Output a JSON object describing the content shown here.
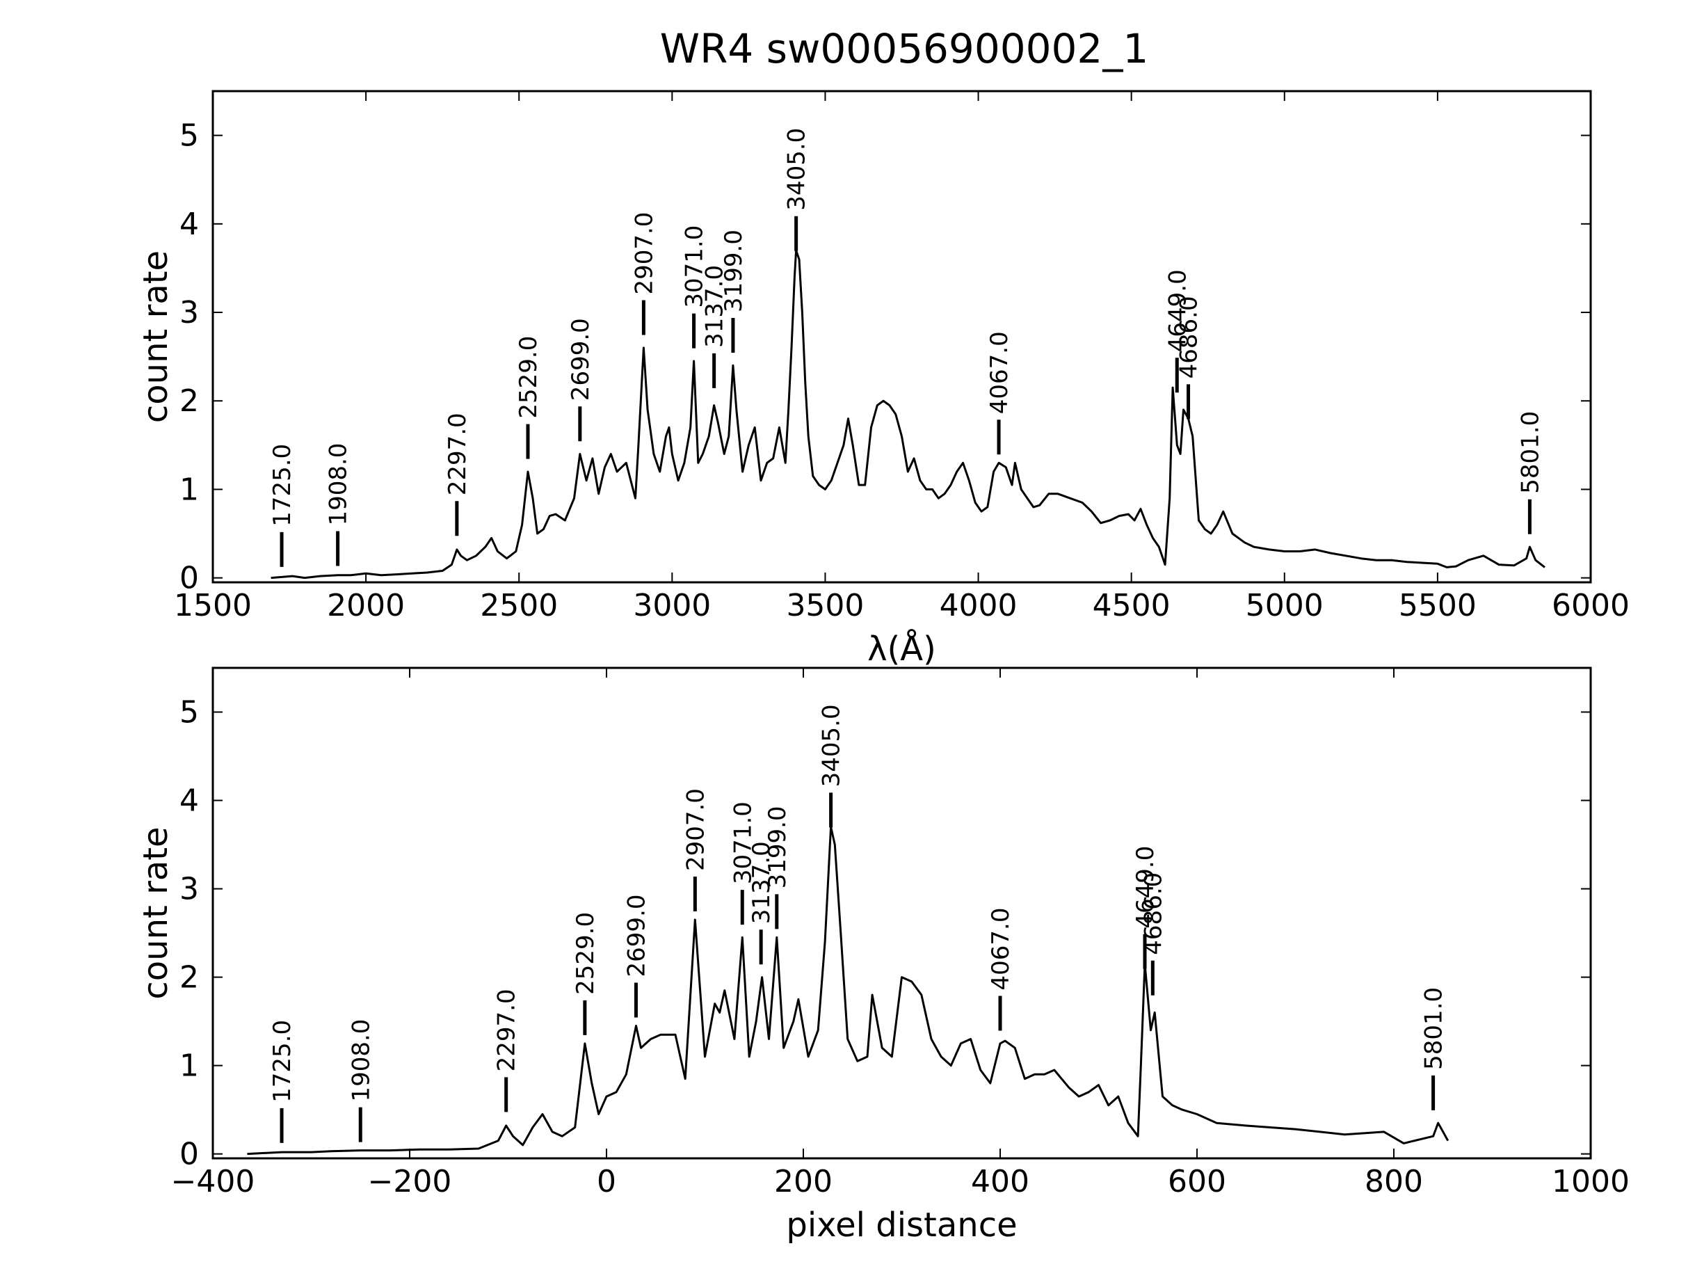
{
  "title": "WR4  sw00056900002_1",
  "chart_data": [
    {
      "type": "line",
      "xlabel": "λ(Å)",
      "ylabel": "count rate",
      "xlim": [
        1500,
        6000
      ],
      "ylim": [
        -0.05,
        5.5
      ],
      "xticks": [
        1500,
        2000,
        2500,
        3000,
        3500,
        4000,
        4500,
        5000,
        5500,
        6000
      ],
      "xtick_labels": [
        "1500",
        "2000",
        "2500",
        "3000",
        "3500",
        "4000",
        "4500",
        "5000",
        "5500",
        "6000"
      ],
      "yticks": [
        0,
        1,
        2,
        3,
        4,
        5
      ],
      "ytick_labels": [
        "0",
        "1",
        "2",
        "3",
        "4",
        "5"
      ],
      "grid": false,
      "series": [
        {
          "x": [
            1690,
            1725,
            1760,
            1800,
            1850,
            1908,
            1950,
            2000,
            2050,
            2100,
            2150,
            2200,
            2250,
            2280,
            2297,
            2310,
            2330,
            2360,
            2390,
            2410,
            2430,
            2460,
            2490,
            2510,
            2529,
            2545,
            2560,
            2580,
            2600,
            2620,
            2650,
            2680,
            2699,
            2720,
            2740,
            2760,
            2780,
            2800,
            2820,
            2850,
            2880,
            2890,
            2907,
            2920,
            2940,
            2960,
            2980,
            2990,
            3000,
            3020,
            3040,
            3060,
            3071,
            3085,
            3100,
            3120,
            3137,
            3150,
            3170,
            3185,
            3199,
            3210,
            3230,
            3250,
            3270,
            3290,
            3310,
            3330,
            3350,
            3360,
            3370,
            3380,
            3390,
            3400,
            3405,
            3415,
            3425,
            3435,
            3445,
            3460,
            3480,
            3500,
            3520,
            3540,
            3560,
            3575,
            3590,
            3610,
            3630,
            3650,
            3670,
            3690,
            3710,
            3730,
            3750,
            3770,
            3790,
            3810,
            3830,
            3850,
            3870,
            3890,
            3910,
            3930,
            3950,
            3970,
            3990,
            4010,
            4030,
            4050,
            4067,
            4090,
            4110,
            4120,
            4140,
            4160,
            4180,
            4200,
            4230,
            4260,
            4300,
            4340,
            4370,
            4400,
            4430,
            4460,
            4490,
            4510,
            4530,
            4550,
            4570,
            4590,
            4610,
            4625,
            4635,
            4649,
            4660,
            4670,
            4686,
            4700,
            4720,
            4740,
            4760,
            4780,
            4800,
            4830,
            4870,
            4900,
            4950,
            5000,
            5050,
            5100,
            5150,
            5200,
            5250,
            5300,
            5350,
            5400,
            5450,
            5500,
            5530,
            5560,
            5600,
            5650,
            5700,
            5750,
            5790,
            5801,
            5820,
            5850
          ],
          "y": [
            0.0,
            0.01,
            0.02,
            0.0,
            0.02,
            0.03,
            0.03,
            0.05,
            0.03,
            0.04,
            0.05,
            0.06,
            0.08,
            0.15,
            0.32,
            0.25,
            0.2,
            0.25,
            0.35,
            0.45,
            0.3,
            0.22,
            0.3,
            0.6,
            1.2,
            0.9,
            0.5,
            0.55,
            0.7,
            0.72,
            0.65,
            0.9,
            1.4,
            1.1,
            1.35,
            0.95,
            1.25,
            1.4,
            1.2,
            1.3,
            0.9,
            1.5,
            2.6,
            1.9,
            1.4,
            1.2,
            1.6,
            1.7,
            1.4,
            1.1,
            1.3,
            1.7,
            2.45,
            1.3,
            1.4,
            1.6,
            1.95,
            1.75,
            1.4,
            1.6,
            2.4,
            1.9,
            1.2,
            1.5,
            1.7,
            1.1,
            1.3,
            1.35,
            1.7,
            1.5,
            1.3,
            1.9,
            2.6,
            3.4,
            3.7,
            3.6,
            3.0,
            2.2,
            1.6,
            1.15,
            1.05,
            1.0,
            1.1,
            1.3,
            1.5,
            1.8,
            1.5,
            1.05,
            1.05,
            1.7,
            1.95,
            2.0,
            1.95,
            1.85,
            1.6,
            1.2,
            1.35,
            1.1,
            1.0,
            1.0,
            0.9,
            0.95,
            1.05,
            1.2,
            1.3,
            1.1,
            0.85,
            0.75,
            0.8,
            1.2,
            1.3,
            1.25,
            1.05,
            1.3,
            1.0,
            0.9,
            0.8,
            0.82,
            0.95,
            0.95,
            0.9,
            0.85,
            0.75,
            0.62,
            0.65,
            0.7,
            0.72,
            0.65,
            0.78,
            0.6,
            0.45,
            0.35,
            0.15,
            0.9,
            2.15,
            1.5,
            1.4,
            1.9,
            1.8,
            1.6,
            0.65,
            0.55,
            0.5,
            0.6,
            0.75,
            0.5,
            0.4,
            0.35,
            0.32,
            0.3,
            0.3,
            0.32,
            0.28,
            0.25,
            0.22,
            0.2,
            0.2,
            0.18,
            0.17,
            0.16,
            0.12,
            0.13,
            0.2,
            0.25,
            0.15,
            0.14,
            0.22,
            0.35,
            0.2,
            0.12
          ]
        }
      ],
      "line_markers": [
        {
          "x": 1725,
          "y": 0.03,
          "label": "1725.0"
        },
        {
          "x": 1908,
          "y": 0.04,
          "label": "1908.0"
        },
        {
          "x": 2297,
          "y": 0.38,
          "label": "2297.0"
        },
        {
          "x": 2529,
          "y": 1.25,
          "label": "2529.0"
        },
        {
          "x": 2699,
          "y": 1.45,
          "label": "2699.0"
        },
        {
          "x": 2907,
          "y": 2.65,
          "label": "2907.0"
        },
        {
          "x": 3071,
          "y": 2.5,
          "label": "3071.0"
        },
        {
          "x": 3137,
          "y": 2.05,
          "label": "3137.0"
        },
        {
          "x": 3199,
          "y": 2.45,
          "label": "3199.0"
        },
        {
          "x": 3405,
          "y": 3.6,
          "label": "3405.0"
        },
        {
          "x": 4067,
          "y": 1.3,
          "label": "4067.0"
        },
        {
          "x": 4649,
          "y": 2.0,
          "label": "4649.0"
        },
        {
          "x": 4686,
          "y": 1.7,
          "label": "4686.0"
        },
        {
          "x": 5801,
          "y": 0.4,
          "label": "5801.0"
        }
      ]
    },
    {
      "type": "line",
      "xlabel": "pixel distance",
      "ylabel": "count rate",
      "xlim": [
        -400,
        1000
      ],
      "ylim": [
        -0.05,
        5.5
      ],
      "xticks": [
        -400,
        -200,
        0,
        200,
        400,
        600,
        800,
        1000
      ],
      "xtick_labels": [
        "−400",
        "−200",
        "0",
        "200",
        "400",
        "600",
        "800",
        "1000"
      ],
      "yticks": [
        0,
        1,
        2,
        3,
        4,
        5
      ],
      "ytick_labels": [
        "0",
        "1",
        "2",
        "3",
        "4",
        "5"
      ],
      "grid": false,
      "series": [
        {
          "x": [
            -365,
            -330,
            -300,
            -280,
            -250,
            -220,
            -190,
            -160,
            -130,
            -110,
            -102,
            -95,
            -85,
            -75,
            -65,
            -55,
            -45,
            -32,
            -22,
            -15,
            -8,
            0,
            10,
            20,
            30,
            35,
            45,
            55,
            70,
            80,
            90,
            100,
            110,
            115,
            120,
            130,
            138,
            145,
            152,
            158,
            165,
            173,
            180,
            190,
            195,
            205,
            215,
            222,
            228,
            232,
            238,
            245,
            255,
            265,
            270,
            280,
            290,
            300,
            310,
            320,
            330,
            340,
            350,
            360,
            370,
            380,
            390,
            400,
            405,
            415,
            425,
            435,
            445,
            455,
            470,
            480,
            490,
            500,
            510,
            520,
            530,
            540,
            543,
            547,
            553,
            557,
            565,
            575,
            585,
            600,
            620,
            650,
            700,
            750,
            790,
            810,
            840,
            845,
            855
          ],
          "y": [
            0.0,
            0.02,
            0.02,
            0.03,
            0.04,
            0.04,
            0.05,
            0.05,
            0.06,
            0.15,
            0.32,
            0.2,
            0.1,
            0.3,
            0.45,
            0.25,
            0.2,
            0.3,
            1.25,
            0.8,
            0.45,
            0.65,
            0.7,
            0.9,
            1.45,
            1.2,
            1.3,
            1.35,
            1.35,
            0.85,
            2.65,
            1.1,
            1.7,
            1.6,
            1.85,
            1.3,
            2.45,
            1.1,
            1.5,
            2.0,
            1.3,
            2.45,
            1.2,
            1.5,
            1.75,
            1.1,
            1.4,
            2.4,
            3.7,
            3.5,
            2.5,
            1.3,
            1.05,
            1.1,
            1.8,
            1.2,
            1.1,
            2.0,
            1.95,
            1.8,
            1.3,
            1.1,
            1.0,
            1.25,
            1.3,
            0.95,
            0.8,
            1.25,
            1.28,
            1.2,
            0.85,
            0.9,
            0.9,
            0.95,
            0.75,
            0.65,
            0.7,
            0.78,
            0.55,
            0.65,
            0.35,
            0.2,
            1.0,
            2.15,
            1.4,
            1.6,
            0.65,
            0.55,
            0.5,
            0.45,
            0.35,
            0.32,
            0.28,
            0.22,
            0.25,
            0.12,
            0.2,
            0.35,
            0.15
          ]
        }
      ],
      "line_markers": [
        {
          "x": -330,
          "y": 0.03,
          "label": "1725.0"
        },
        {
          "x": -250,
          "y": 0.04,
          "label": "1908.0"
        },
        {
          "x": -102,
          "y": 0.38,
          "label": "2297.0"
        },
        {
          "x": -22,
          "y": 1.25,
          "label": "2529.0"
        },
        {
          "x": 30,
          "y": 1.45,
          "label": "2699.0"
        },
        {
          "x": 90,
          "y": 2.65,
          "label": "2907.0"
        },
        {
          "x": 138,
          "y": 2.5,
          "label": "3071.0"
        },
        {
          "x": 157,
          "y": 2.05,
          "label": "3137.0"
        },
        {
          "x": 173,
          "y": 2.45,
          "label": "3199.0"
        },
        {
          "x": 228,
          "y": 3.6,
          "label": "3405.0"
        },
        {
          "x": 400,
          "y": 1.3,
          "label": "4067.0"
        },
        {
          "x": 547,
          "y": 2.0,
          "label": "4649.0"
        },
        {
          "x": 555,
          "y": 1.7,
          "label": "4686.0"
        },
        {
          "x": 840,
          "y": 0.4,
          "label": "5801.0"
        }
      ]
    }
  ]
}
